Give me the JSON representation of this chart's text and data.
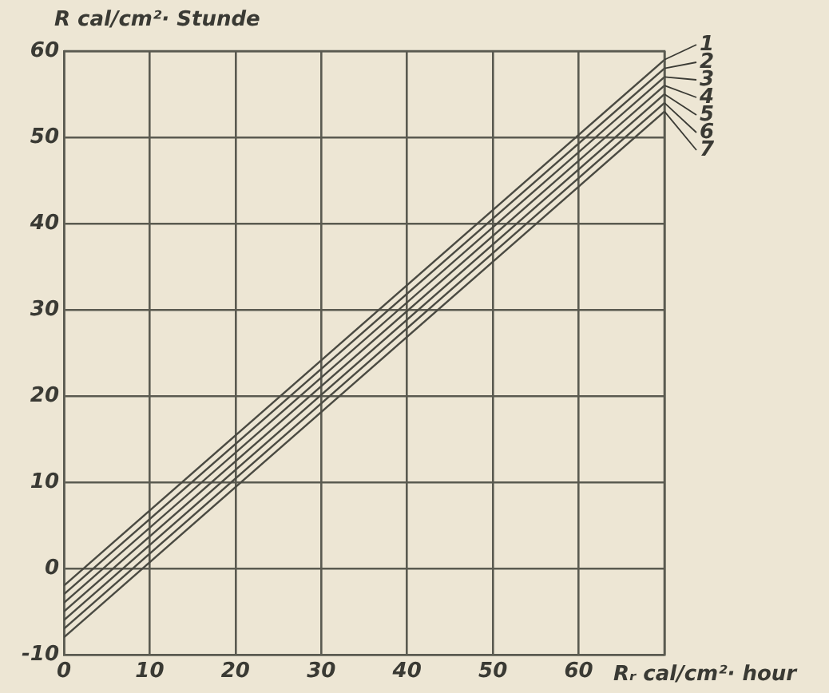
{
  "chart_data": {
    "type": "line",
    "xlabel": "Rᵣ cal/cm²· hour",
    "ylabel": "R cal/cm²· Stunde",
    "x": [
      0,
      70
    ],
    "xlim": [
      0,
      70
    ],
    "ylim": [
      -10,
      60
    ],
    "xticks": [
      0,
      10,
      20,
      30,
      40,
      50,
      60,
      {
        "value": 70,
        "label": null
      }
    ],
    "yticks": [
      -10,
      0,
      10,
      20,
      30,
      40,
      50,
      60
    ],
    "grid": true,
    "legend": "top right",
    "marker": "none",
    "line_style": "solid",
    "series": [
      {
        "name": "1",
        "color": "#4a4a42",
        "values": [
          -2,
          59
        ]
      },
      {
        "name": "2",
        "color": "#4a4a42",
        "values": [
          -3,
          58
        ]
      },
      {
        "name": "3",
        "color": "#4a4a42",
        "values": [
          -4,
          57
        ]
      },
      {
        "name": "4",
        "color": "#4a4a42",
        "values": [
          -5,
          56
        ]
      },
      {
        "name": "5",
        "color": "#4a4a42",
        "values": [
          -6,
          55
        ]
      },
      {
        "name": "6",
        "color": "#4a4a42",
        "values": [
          -7,
          54
        ]
      },
      {
        "name": "7",
        "color": "#4a4a42",
        "values": [
          -8,
          53
        ]
      }
    ]
  }
}
